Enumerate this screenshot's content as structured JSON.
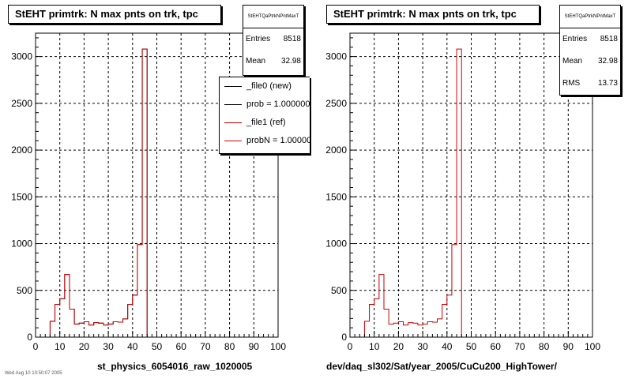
{
  "colors": {
    "hist_new": "#000000",
    "hist_ref": "#cc0000",
    "grid": "#000000"
  },
  "panels": [
    {
      "title": "StEHT primtrk: N max pnts on trk, tpc",
      "stats": {
        "name": "StEHTQaPtrkNPntMaxT",
        "rows": [
          {
            "label": "Entries",
            "value": "8518"
          },
          {
            "label": "Mean",
            "value": "32.98"
          }
        ]
      },
      "legend": [
        {
          "text": "_file0 (new)",
          "color": "#000000"
        },
        {
          "text": "prob = 1.000000",
          "color": "#000000"
        },
        {
          "text": "_file1 (ref)",
          "color": "#cc0000"
        },
        {
          "text": "probN = 1.000000",
          "color": "#cc0000"
        }
      ],
      "xlabel": "st_physics_6054016_raw_1020005"
    },
    {
      "title": "StEHT primtrk: N max pnts on trk, tpc",
      "stats": {
        "name": "StEHTQaPtrkNPntMaxT",
        "rows": [
          {
            "label": "Entries",
            "value": "8518"
          },
          {
            "label": "Mean",
            "value": "32.98"
          },
          {
            "label": "RMS",
            "value": "13.73"
          }
        ]
      },
      "legend": [],
      "xlabel": "dev/daq_sl302/Sat/year_2005/CuCu200_HighTower/"
    }
  ],
  "footer_text": "Wed Aug 10 10:50:07 2005",
  "chart_data": [
    {
      "type": "histogram",
      "title": "StEHT primtrk: N max pnts on trk, tpc",
      "xlabel": "st_physics_6054016_raw_1020005",
      "ylabel": "",
      "xlim": [
        0,
        100
      ],
      "ylim": [
        0,
        3250
      ],
      "xticks": [
        0,
        10,
        20,
        30,
        40,
        50,
        60,
        70,
        80,
        90,
        100
      ],
      "yticks": [
        0,
        500,
        1000,
        1500,
        2000,
        2500,
        3000
      ],
      "grid": true,
      "bin_width": 2,
      "bin_edges_start": 0,
      "series": [
        {
          "name": "_file0 (new)",
          "color": "#000000",
          "values": [
            0,
            0,
            0,
            170,
            350,
            410,
            670,
            300,
            140,
            150,
            165,
            130,
            155,
            150,
            130,
            140,
            165,
            160,
            195,
            350,
            450,
            990,
            3080,
            0,
            0,
            0,
            0,
            0,
            0,
            0,
            0,
            0,
            0,
            0,
            0,
            0,
            0,
            0,
            0,
            0,
            0,
            0,
            0,
            0,
            0,
            0,
            0,
            0,
            0,
            0
          ]
        },
        {
          "name": "_file1 (ref)",
          "color": "#cc0000",
          "values": [
            0,
            0,
            0,
            170,
            350,
            410,
            670,
            300,
            140,
            150,
            165,
            130,
            155,
            150,
            130,
            140,
            165,
            160,
            195,
            350,
            450,
            990,
            3080,
            0,
            0,
            0,
            0,
            0,
            0,
            0,
            0,
            0,
            0,
            0,
            0,
            0,
            0,
            0,
            0,
            0,
            0,
            0,
            0,
            0,
            0,
            0,
            0,
            0,
            0,
            0
          ]
        }
      ]
    },
    {
      "type": "histogram",
      "title": "StEHT primtrk: N max pnts on trk, tpc",
      "xlabel": "dev/daq_sl302/Sat/year_2005/CuCu200_HighTower/",
      "ylabel": "",
      "xlim": [
        0,
        100
      ],
      "ylim": [
        0,
        3250
      ],
      "xticks": [
        0,
        10,
        20,
        30,
        40,
        50,
        60,
        70,
        80,
        90,
        100
      ],
      "yticks": [
        0,
        500,
        1000,
        1500,
        2000,
        2500,
        3000
      ],
      "grid": true,
      "bin_width": 2,
      "bin_edges_start": 0,
      "series": [
        {
          "name": "_file1 (ref)",
          "color": "#cc0000",
          "values": [
            0,
            0,
            0,
            170,
            350,
            410,
            670,
            300,
            140,
            150,
            165,
            130,
            155,
            150,
            130,
            140,
            165,
            160,
            195,
            350,
            450,
            990,
            3080,
            0,
            0,
            0,
            0,
            0,
            0,
            0,
            0,
            0,
            0,
            0,
            0,
            0,
            0,
            0,
            0,
            0,
            0,
            0,
            0,
            0,
            0,
            0,
            0,
            0,
            0,
            0
          ]
        }
      ]
    }
  ]
}
